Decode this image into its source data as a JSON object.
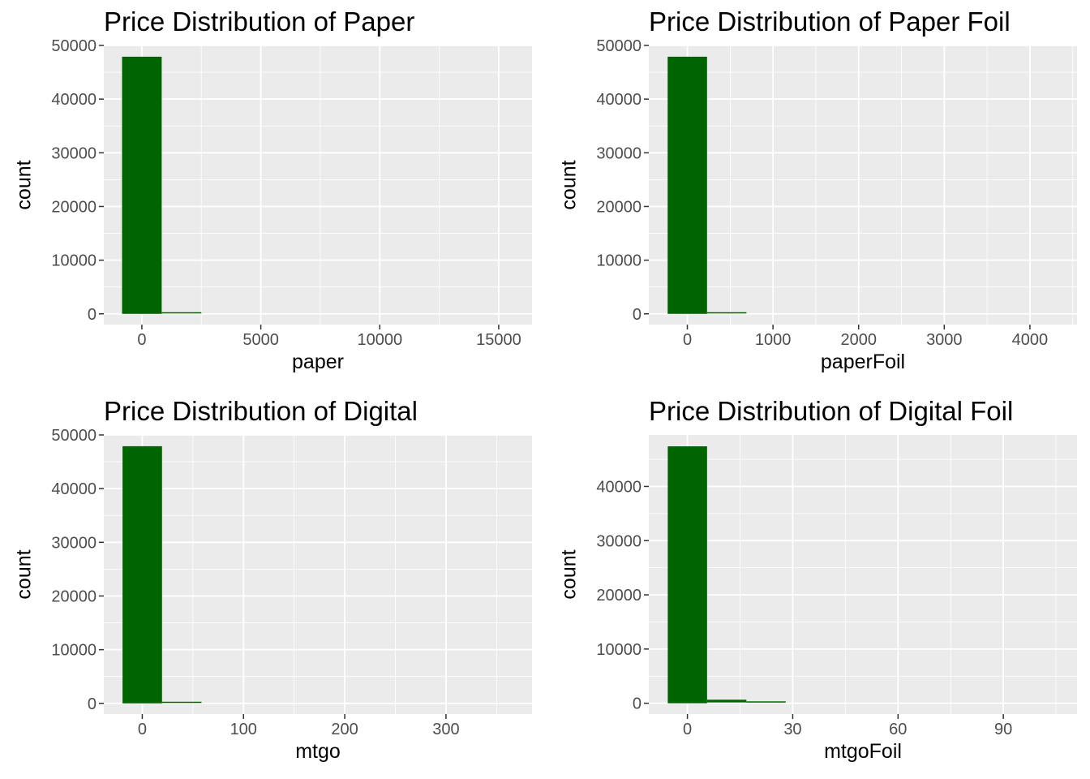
{
  "chart_data": [
    {
      "type": "bar",
      "title": "Price Distribution of Paper",
      "xlabel": "paper",
      "ylabel": "count",
      "xlim": [
        -1600,
        16400
      ],
      "ylim": [
        -2000,
        50000
      ],
      "xticks": [
        0,
        5000,
        10000,
        15000
      ],
      "yticks": [
        0,
        10000,
        20000,
        30000,
        40000,
        50000
      ],
      "bar_color": "#006400",
      "bins": [
        {
          "x0": -833,
          "x1": 833,
          "count": 47900
        },
        {
          "x0": 833,
          "x1": 2500,
          "count": 150
        }
      ]
    },
    {
      "type": "bar",
      "title": "Price Distribution of Paper Foil",
      "xlabel": "paperFoil",
      "ylabel": "count",
      "xlim": [
        -450,
        4550
      ],
      "ylim": [
        -2000,
        50000
      ],
      "xticks": [
        0,
        1000,
        2000,
        3000,
        4000
      ],
      "yticks": [
        0,
        10000,
        20000,
        30000,
        40000,
        50000
      ],
      "bar_color": "#006400",
      "bins": [
        {
          "x0": -230,
          "x1": 230,
          "count": 47900
        },
        {
          "x0": 230,
          "x1": 690,
          "count": 150
        }
      ]
    },
    {
      "type": "bar",
      "title": "Price Distribution of Digital",
      "xlabel": "mtgo",
      "ylabel": "count",
      "xlim": [
        -38,
        385
      ],
      "ylim": [
        -2000,
        50000
      ],
      "xticks": [
        0,
        100,
        200,
        300
      ],
      "yticks": [
        0,
        10000,
        20000,
        30000,
        40000,
        50000
      ],
      "bar_color": "#006400",
      "bins": [
        {
          "x0": -19.5,
          "x1": 19.5,
          "count": 47900
        },
        {
          "x0": 19.5,
          "x1": 58.5,
          "count": 150
        }
      ]
    },
    {
      "type": "bar",
      "title": "Price Distribution of Digital Foil",
      "xlabel": "mtgoFoil",
      "ylabel": "count",
      "xlim": [
        -11,
        111
      ],
      "ylim": [
        -2000,
        49500
      ],
      "xticks": [
        0,
        30,
        60,
        90
      ],
      "yticks": [
        0,
        10000,
        20000,
        30000,
        40000
      ],
      "bar_color": "#006400",
      "bins": [
        {
          "x0": -5.6,
          "x1": 5.6,
          "count": 47400
        },
        {
          "x0": 5.6,
          "x1": 16.8,
          "count": 500
        },
        {
          "x0": 16.8,
          "x1": 28,
          "count": 200
        }
      ]
    }
  ]
}
